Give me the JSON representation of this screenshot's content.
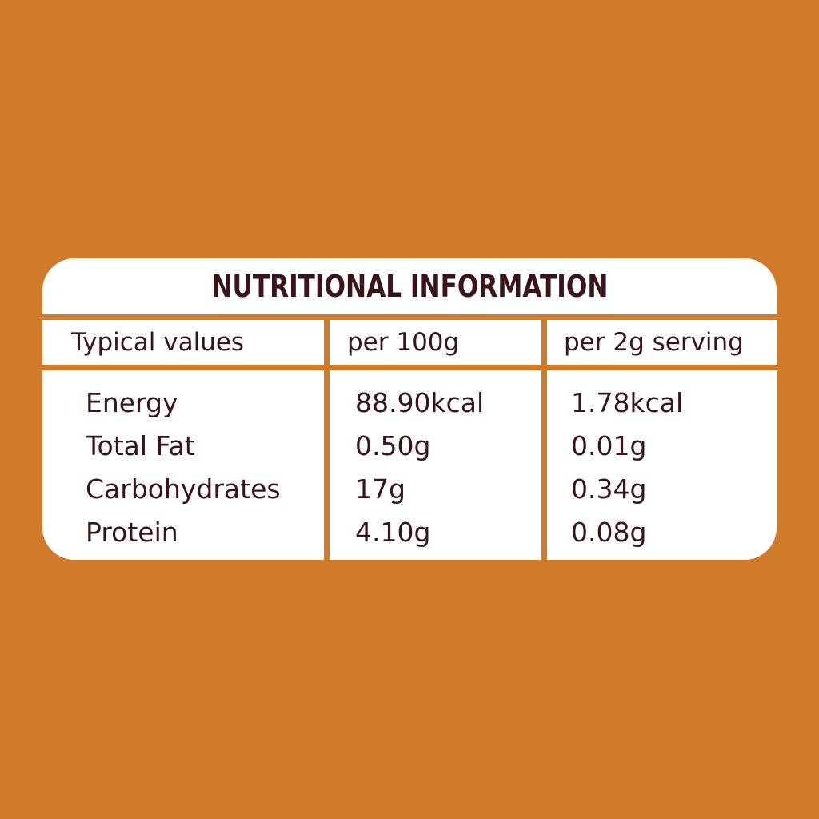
{
  "title": "NUTRITIONAL INFORMATION",
  "headers": [
    "Typical values",
    "per 100g",
    "per 2g serving"
  ],
  "rows": [
    {
      "nutrient": "Energy",
      "per_100g": "88.90kcal",
      "per_serving": "1.78kcal"
    },
    {
      "nutrient": "Total Fat",
      "per_100g": "0.50g",
      "per_serving": "0.01g"
    },
    {
      "nutrient": "Carbohydrates",
      "per_100g": "17g",
      "per_serving": "0.34g"
    },
    {
      "nutrient": "Protein",
      "per_100g": "4.10g",
      "per_serving": "0.08g"
    }
  ],
  "colors": {
    "background": "#D07B2C",
    "text": "#3A1418",
    "panel": "#FFFFFF"
  }
}
